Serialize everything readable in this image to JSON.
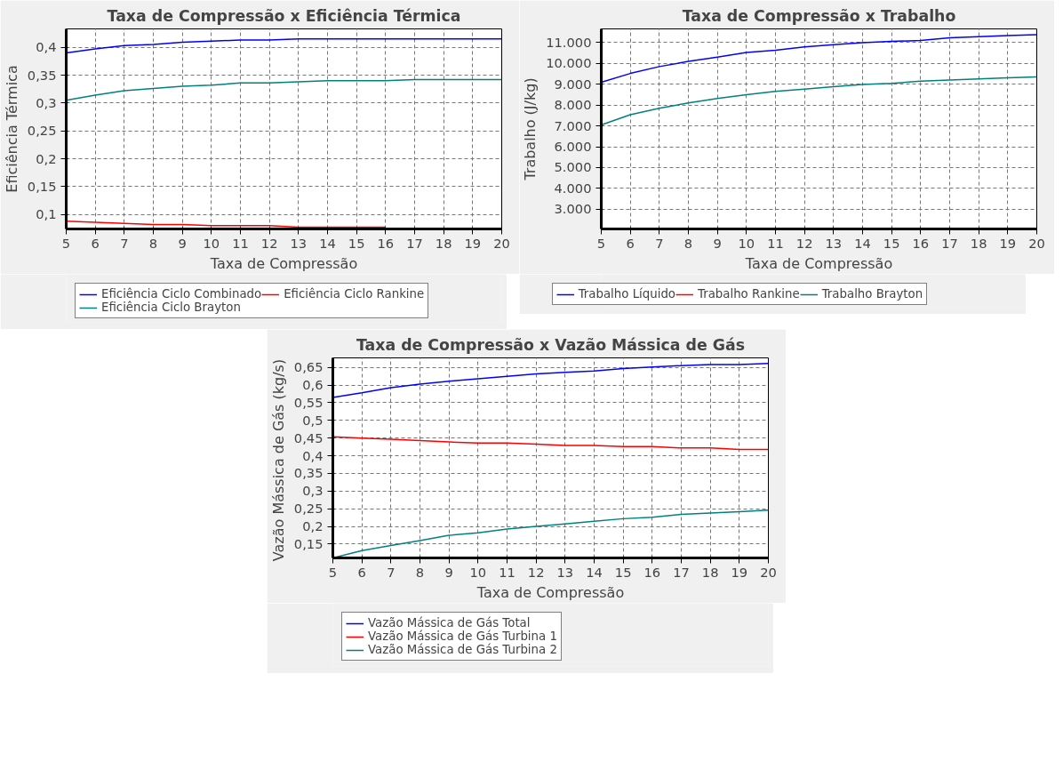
{
  "chart_data": [
    {
      "type": "line",
      "title": "Taxa de Compressão x Eficiência Térmica",
      "xlabel": "Taxa de Compressão",
      "ylabel": "Eficiência Térmica",
      "x": [
        5,
        6,
        7,
        8,
        9,
        10,
        11,
        12,
        13,
        14,
        15,
        16,
        17,
        18,
        19,
        20
      ],
      "xlim": [
        5,
        20
      ],
      "xticks": [
        5,
        6,
        7,
        8,
        9,
        10,
        11,
        12,
        13,
        14,
        15,
        16,
        17,
        18,
        19,
        20
      ],
      "ylim": [
        0.074,
        0.433
      ],
      "yticks": [
        {
          "value": 0.1,
          "label": "0,1"
        },
        {
          "value": 0.15,
          "label": "0,15"
        },
        {
          "value": 0.2,
          "label": "0,2"
        },
        {
          "value": 0.25,
          "label": "0,25"
        },
        {
          "value": 0.3,
          "label": "0,3"
        },
        {
          "value": 0.35,
          "label": "0,35"
        },
        {
          "value": 0.4,
          "label": "0,4"
        }
      ],
      "grid": true,
      "legend": "bottom",
      "line_style": "solid",
      "series": [
        {
          "name": "Eficiência Ciclo Combinado",
          "color": "#0000ff",
          "values": [
            0.39,
            0.397,
            0.403,
            0.405,
            0.409,
            0.411,
            0.413,
            0.413,
            0.415,
            0.415,
            0.415,
            0.415,
            0.415,
            0.415,
            0.415,
            0.415
          ]
        },
        {
          "name": "Eficiência Ciclo Rankine",
          "color": "#ff0000",
          "values": [
            0.088,
            0.086,
            0.084,
            0.082,
            0.082,
            0.08,
            0.08,
            0.08,
            0.077,
            0.077,
            0.077,
            0.077,
            null,
            null,
            null,
            null
          ]
        },
        {
          "name": "Eficiência Ciclo Brayton",
          "color": "#008080",
          "values": [
            0.305,
            0.314,
            0.322,
            0.326,
            0.33,
            0.332,
            0.336,
            0.336,
            0.338,
            0.34,
            0.34,
            0.34,
            0.342,
            0.342,
            0.342,
            0.342
          ]
        }
      ]
    },
    {
      "type": "line",
      "title": "Taxa de Compressão x Trabalho",
      "xlabel": "Taxa de Compressão",
      "ylabel": "Trabalho (J/kg)",
      "x": [
        5,
        6,
        7,
        8,
        9,
        10,
        11,
        12,
        13,
        14,
        15,
        16,
        17,
        18,
        19,
        20
      ],
      "xlim": [
        5,
        20
      ],
      "xticks": [
        5,
        6,
        7,
        8,
        9,
        10,
        11,
        12,
        13,
        14,
        15,
        16,
        17,
        18,
        19,
        20
      ],
      "ylim": [
        2050,
        11660
      ],
      "yticks": [
        {
          "value": 3000,
          "label": "3.000"
        },
        {
          "value": 4000,
          "label": "4.000"
        },
        {
          "value": 5000,
          "label": "5.000"
        },
        {
          "value": 6000,
          "label": "6.000"
        },
        {
          "value": 7000,
          "label": "7.000"
        },
        {
          "value": 8000,
          "label": "8.000"
        },
        {
          "value": 9000,
          "label": "9.000"
        },
        {
          "value": 10000,
          "label": "10.000"
        },
        {
          "value": 11000,
          "label": "11.000"
        }
      ],
      "grid": true,
      "legend": "bottom",
      "line_style": "solid",
      "series": [
        {
          "name": "Trabalho Líquido",
          "color": "#0000ff",
          "values": [
            9100,
            9520,
            9850,
            10100,
            10300,
            10530,
            10640,
            10800,
            10900,
            11000,
            11060,
            11100,
            11230,
            11290,
            11340,
            11380
          ]
        },
        {
          "name": "Trabalho Rankine",
          "color": "#ff0000",
          "values": [
            null,
            null,
            null,
            null,
            null,
            null,
            null,
            null,
            null,
            null,
            null,
            null,
            null,
            null,
            null,
            null
          ]
        },
        {
          "name": "Trabalho Brayton",
          "color": "#008080",
          "values": [
            7050,
            7540,
            7850,
            8100,
            8320,
            8500,
            8660,
            8770,
            8880,
            8990,
            9040,
            9150,
            9200,
            9260,
            9310,
            9350
          ]
        }
      ]
    },
    {
      "type": "line",
      "title": "Taxa de Compressão x Vazão Mássica de Gás",
      "xlabel": "Taxa de Compressão",
      "ylabel": "Vazão Mássica de Gás  (kg/s)",
      "x": [
        5,
        6,
        7,
        8,
        9,
        10,
        11,
        12,
        13,
        14,
        15,
        16,
        17,
        18,
        19,
        20
      ],
      "xlim": [
        5,
        20
      ],
      "xticks": [
        5,
        6,
        7,
        8,
        9,
        10,
        11,
        12,
        13,
        14,
        15,
        16,
        17,
        18,
        19,
        20
      ],
      "ylim": [
        0.111,
        0.677
      ],
      "yticks": [
        {
          "value": 0.15,
          "label": "0,15"
        },
        {
          "value": 0.2,
          "label": "0,2"
        },
        {
          "value": 0.25,
          "label": "0,25"
        },
        {
          "value": 0.3,
          "label": "0,3"
        },
        {
          "value": 0.35,
          "label": "0,35"
        },
        {
          "value": 0.4,
          "label": "0,4"
        },
        {
          "value": 0.45,
          "label": "0,45"
        },
        {
          "value": 0.5,
          "label": "0,5"
        },
        {
          "value": 0.55,
          "label": "0,55"
        },
        {
          "value": 0.6,
          "label": "0,6"
        },
        {
          "value": 0.65,
          "label": "0,65"
        }
      ],
      "grid": true,
      "legend": "bottom",
      "line_style": "solid",
      "series": [
        {
          "name": "Vazão Mássica de Gás Total",
          "color": "#0000ff",
          "values": [
            0.565,
            0.578,
            0.593,
            0.603,
            0.611,
            0.618,
            0.625,
            0.632,
            0.636,
            0.64,
            0.647,
            0.651,
            0.655,
            0.658,
            0.658,
            0.661
          ]
        },
        {
          "name": "Vazão Mássica de Gás Turbina 1",
          "color": "#ff0000",
          "values": [
            0.454,
            0.45,
            0.447,
            0.443,
            0.439,
            0.436,
            0.436,
            0.433,
            0.429,
            0.429,
            0.426,
            0.426,
            0.422,
            0.422,
            0.418,
            0.418
          ]
        },
        {
          "name": "Vazão Mássica de Gás Turbina 2",
          "color": "#008080",
          "values": [
            0.111,
            0.132,
            0.146,
            0.16,
            0.175,
            0.182,
            0.193,
            0.2,
            0.207,
            0.215,
            0.222,
            0.226,
            0.234,
            0.238,
            0.242,
            0.246
          ]
        }
      ]
    }
  ]
}
